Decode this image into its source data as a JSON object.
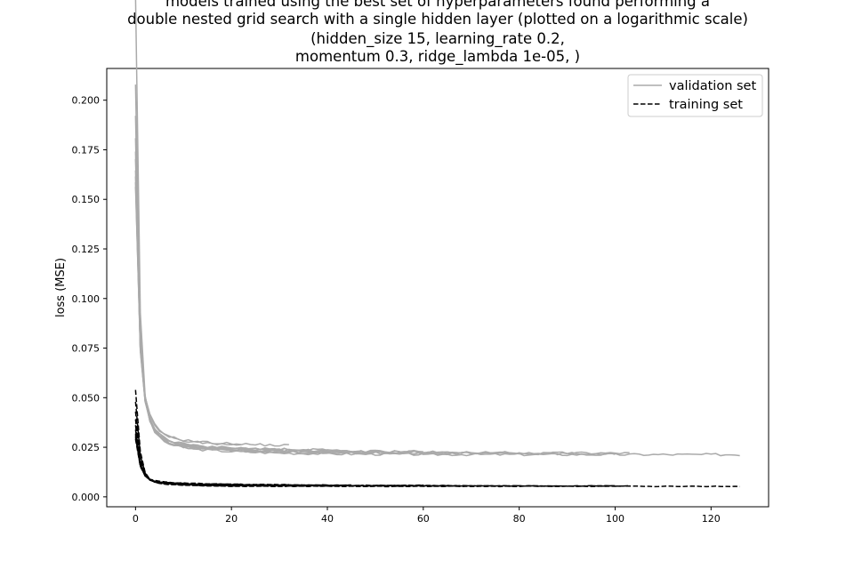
{
  "chart_data": {
    "type": "line",
    "title_lines": [
      "models trained using the best set of hyperparameters found performing a",
      "double nested grid search with a single hidden layer (plotted on a logarithmic scale)",
      "(hidden_size 15, learning_rate 0.2,",
      "momentum 0.3, ridge_lambda 1e-05, )"
    ],
    "xlabel": "",
    "ylabel": "loss (MSE)",
    "xlim": [
      -6,
      132
    ],
    "ylim": [
      -0.005,
      0.216
    ],
    "xticks": [
      0,
      20,
      40,
      60,
      80,
      100,
      120
    ],
    "yticks": [
      0.0,
      0.025,
      0.05,
      0.075,
      0.1,
      0.125,
      0.15,
      0.175,
      0.2
    ],
    "ytick_labels": [
      "0.000",
      "0.025",
      "0.050",
      "0.075",
      "0.100",
      "0.125",
      "0.150",
      "0.175",
      "0.200"
    ],
    "legend": {
      "position": "upper right",
      "entries": [
        {
          "label": "validation set",
          "color": "#aaaaaa",
          "style": "solid"
        },
        {
          "label": "training set",
          "color": "#000000",
          "style": "dashed"
        }
      ]
    },
    "series_groups": [
      {
        "name": "validation set",
        "color": "#aaaaaa",
        "style": "solid",
        "runs": [
          {
            "end_epoch": 126,
            "start": 0.207,
            "plateau": 0.0213
          },
          {
            "end_epoch": 103,
            "start": 0.162,
            "plateau": 0.022
          },
          {
            "end_epoch": 100,
            "start": 0.146,
            "plateau": 0.0218
          },
          {
            "end_epoch": 80,
            "start": 0.124,
            "plateau": 0.0222
          },
          {
            "end_epoch": 67,
            "start": 0.118,
            "plateau": 0.0225
          },
          {
            "end_epoch": 60,
            "start": 0.113,
            "plateau": 0.0228
          },
          {
            "end_epoch": 45,
            "start": 0.135,
            "plateau": 0.023
          },
          {
            "end_epoch": 40,
            "start": 0.128,
            "plateau": 0.0232
          },
          {
            "end_epoch": 32,
            "start": 0.11,
            "plateau": 0.0252
          },
          {
            "end_epoch": 22,
            "start": 0.115,
            "plateau": 0.0248
          }
        ]
      },
      {
        "name": "training set",
        "color": "#000000",
        "style": "dashed",
        "runs": [
          {
            "end_epoch": 126,
            "start": 0.051,
            "plateau": 0.0053
          },
          {
            "end_epoch": 103,
            "start": 0.045,
            "plateau": 0.0055
          },
          {
            "end_epoch": 100,
            "start": 0.04,
            "plateau": 0.0055
          },
          {
            "end_epoch": 80,
            "start": 0.036,
            "plateau": 0.0056
          },
          {
            "end_epoch": 67,
            "start": 0.033,
            "plateau": 0.0057
          },
          {
            "end_epoch": 60,
            "start": 0.031,
            "plateau": 0.0058
          },
          {
            "end_epoch": 45,
            "start": 0.029,
            "plateau": 0.0059
          },
          {
            "end_epoch": 40,
            "start": 0.028,
            "plateau": 0.006
          },
          {
            "end_epoch": 32,
            "start": 0.027,
            "plateau": 0.0062
          },
          {
            "end_epoch": 22,
            "start": 0.026,
            "plateau": 0.0064
          }
        ]
      }
    ]
  }
}
